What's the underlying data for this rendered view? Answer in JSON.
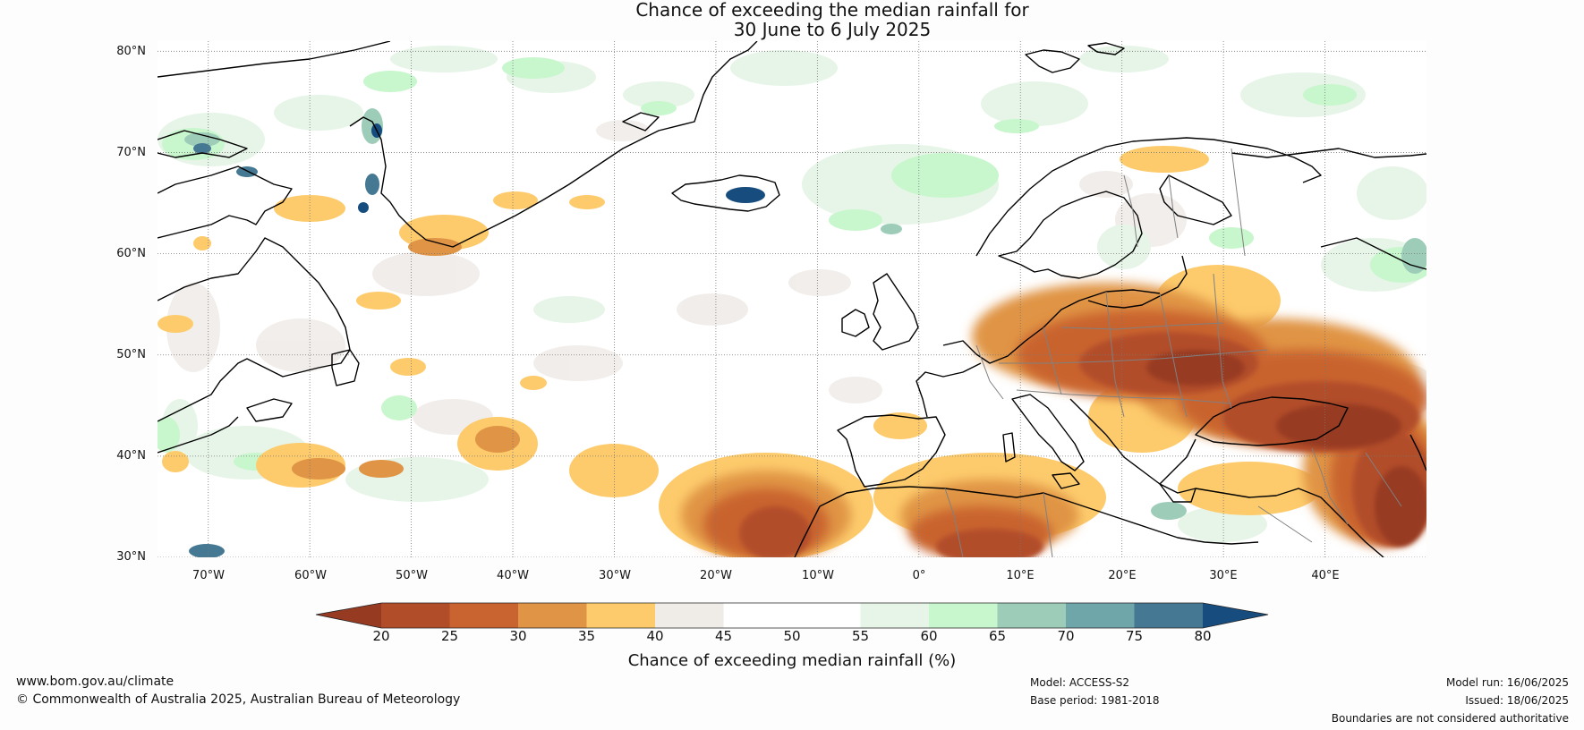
{
  "title": {
    "line1": "Chance of exceeding the median rainfall for",
    "line2": "30 June to 6 July 2025"
  },
  "map": {
    "projection": "equirectangular",
    "lon_range": [
      -75,
      50
    ],
    "lat_range": [
      30,
      81
    ],
    "lat_labels": [
      "30°N",
      "40°N",
      "50°N",
      "60°N",
      "70°N",
      "80°N"
    ],
    "lon_labels": [
      "70°W",
      "60°W",
      "50°W",
      "40°W",
      "30°W",
      "20°W",
      "10°W",
      "0°",
      "10°E",
      "20°E",
      "30°E",
      "40°E"
    ],
    "regions": [
      {
        "name": "south-europe-mediterranean-dry",
        "category": "20-25"
      },
      {
        "name": "balkans-turkey-dry",
        "category": "20-25"
      },
      {
        "name": "northwest-africa-dry",
        "category": "20-25"
      },
      {
        "name": "iceland-wet",
        "category": "75-80"
      },
      {
        "name": "greenland-west-coast-wet",
        "category": "70-75"
      }
    ]
  },
  "colorbar": {
    "label": "Chance of exceeding median rainfall (%)",
    "ticks": [
      "20",
      "25",
      "30",
      "35",
      "40",
      "45",
      "50",
      "55",
      "60",
      "65",
      "70",
      "75",
      "80"
    ],
    "colors": [
      "#973a22",
      "#b24d2a",
      "#c9632f",
      "#e09445",
      "#fdcb6c",
      "#efebe7",
      "#ffffff",
      "#ffffff",
      "#e6f5e7",
      "#c8f6cd",
      "#9dccb8",
      "#6fa6aa",
      "#457892",
      "#174d7e"
    ],
    "land_color": "#ffffff",
    "coast_color": "#000000",
    "border_color": "#808080"
  },
  "footer": {
    "website": "www.bom.gov.au/climate",
    "copyright": "© Commonwealth of Australia 2025, Australian Bureau of Meteorology",
    "model": "Model: ACCESS-S2",
    "base_period": "Base period: 1981-2018",
    "model_run": "Model run: 16/06/2025",
    "issued": "Issued: 18/06/2025",
    "disclaimer": "Boundaries are not considered authoritative"
  }
}
